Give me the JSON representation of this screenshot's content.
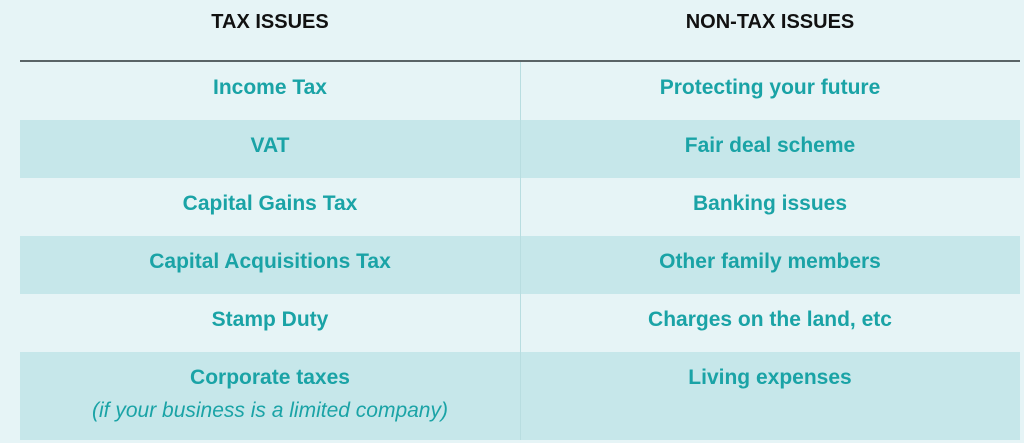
{
  "headers": [
    "TAX ISSUES",
    "NON-TAX ISSUES"
  ],
  "rows": [
    {
      "tax": "Income Tax",
      "non_tax": "Protecting your future"
    },
    {
      "tax": "VAT",
      "non_tax": "Fair deal scheme"
    },
    {
      "tax": "Capital Gains Tax",
      "non_tax": "Banking issues"
    },
    {
      "tax": "Capital Acquisitions Tax",
      "non_tax": "Other family members"
    },
    {
      "tax": "Stamp Duty",
      "non_tax": "Charges on the land, etc"
    },
    {
      "tax": "Corporate taxes",
      "tax_note": "(if your business is a limited company)",
      "non_tax": "Living expenses"
    }
  ],
  "colors": {
    "background": "#e6f4f6",
    "band": "#c6e7ea",
    "text": "#1aa3a6"
  }
}
